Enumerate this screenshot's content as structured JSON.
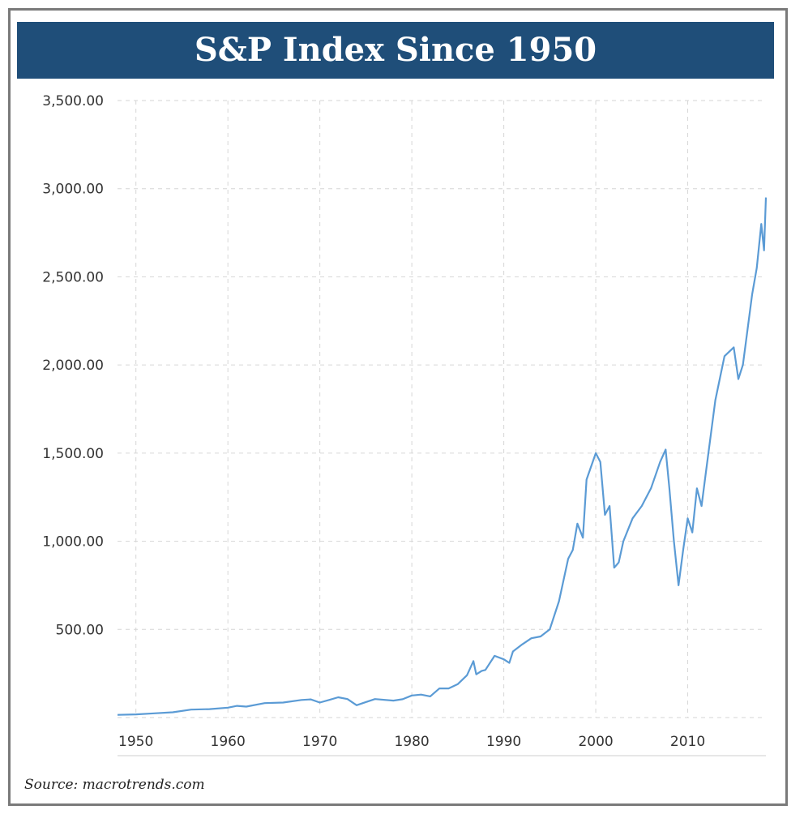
{
  "title": "S&P Index Since 1950",
  "source": "Source: macrotrends.com",
  "chart_data": {
    "type": "line",
    "title": "S&P Index Since 1950",
    "xlabel": "",
    "ylabel": "",
    "xlim": [
      1948,
      2018.5
    ],
    "ylim": [
      0,
      3500
    ],
    "y_ticks": [
      500,
      1000,
      1500,
      2000,
      2500,
      3000,
      3500
    ],
    "y_tick_labels": [
      "500.00",
      "1,000.00",
      "1,500.00",
      "2,000.00",
      "2,500.00",
      "3,000.00",
      "3,500.00"
    ],
    "x_ticks": [
      1950,
      1960,
      1970,
      1980,
      1990,
      2000,
      2010
    ],
    "x_tick_labels": [
      "1950",
      "1960",
      "1970",
      "1980",
      "1990",
      "2000",
      "2010"
    ],
    "grid": true,
    "line_color": "#5b9bd5",
    "series": [
      {
        "x": [
          1948,
          1950,
          1952,
          1954,
          1956,
          1958,
          1960,
          1961,
          1962,
          1964,
          1966,
          1968,
          1969,
          1970,
          1971,
          1972,
          1973,
          1974,
          1975,
          1976,
          1978,
          1979,
          1980,
          1981,
          1982,
          1983,
          1984,
          1985,
          1986,
          1986.7,
          1987,
          1987.6,
          1988,
          1989,
          1990,
          1990.6,
          1991,
          1992,
          1993,
          1994,
          1995,
          1996,
          1997,
          1997.5,
          1998,
          1998.6,
          1999,
          2000,
          2000.5,
          2001,
          2001.5,
          2002,
          2002.5,
          2003,
          2004,
          2005,
          2006,
          2007,
          2007.6,
          2008,
          2008.5,
          2009,
          2009.5,
          2010,
          2010.5,
          2011,
          2011.5,
          2012,
          2013,
          2014,
          2015,
          2015.5,
          2016,
          2016.5,
          2017,
          2017.5,
          2018,
          2018.3,
          2018.5
        ],
        "y": [
          15,
          18,
          24,
          30,
          45,
          48,
          56,
          66,
          62,
          82,
          85,
          100,
          103,
          85,
          100,
          115,
          105,
          70,
          88,
          105,
          96,
          104,
          125,
          130,
          120,
          165,
          165,
          190,
          240,
          320,
          245,
          265,
          270,
          350,
          330,
          310,
          375,
          415,
          450,
          460,
          500,
          660,
          900,
          950,
          1100,
          1020,
          1350,
          1500,
          1450,
          1150,
          1200,
          850,
          880,
          1000,
          1130,
          1200,
          1300,
          1450,
          1520,
          1300,
          1000,
          750,
          950,
          1130,
          1050,
          1300,
          1200,
          1400,
          1800,
          2050,
          2100,
          1920,
          2000,
          2200,
          2400,
          2550,
          2800,
          2650,
          2950
        ]
      }
    ]
  }
}
